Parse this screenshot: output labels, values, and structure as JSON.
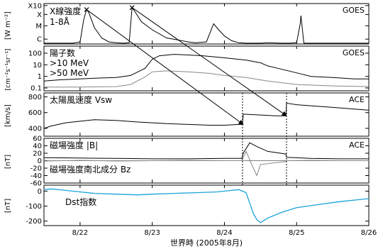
{
  "chart_data": {
    "type": "line",
    "x_axis": {
      "label": "世界時 (2005年8月)",
      "ticks": [
        "8/22",
        "8/23",
        "8/24",
        "8/25",
        "8/26"
      ],
      "range_days": [
        21.5,
        26.0
      ]
    },
    "panels": [
      {
        "id": "xray",
        "title": "X線強度",
        "subtitle": "1-8Å",
        "source": "GOES",
        "ylabel": "[W m⁻²]",
        "yscale": "class",
        "yticks": [
          "X10",
          "X",
          "M",
          "C"
        ],
        "series": [
          {
            "color": "#000000",
            "x": [
              21.5,
              21.9,
              22.0,
              22.05,
              22.09,
              22.12,
              22.2,
              22.3,
              22.4,
              22.5,
              22.6,
              22.68,
              22.72,
              22.76,
              22.85,
              23.0,
              23.2,
              23.35,
              23.5,
              23.6,
              23.75,
              23.85,
              23.92,
              24.0,
              24.1,
              24.2,
              24.3,
              24.5,
              24.6,
              24.8,
              24.9,
              25.0,
              25.05,
              25.06,
              25.1,
              25.5,
              26.0
            ],
            "y": [
              0.02,
              0.02,
              0.05,
              0.6,
              0.85,
              0.78,
              0.4,
              0.15,
              0.05,
              0.03,
              0.02,
              0.03,
              0.9,
              0.8,
              0.55,
              0.35,
              0.15,
              0.1,
              0.05,
              0.03,
              0.05,
              0.5,
              0.35,
              0.2,
              0.08,
              0.03,
              0.02,
              0.02,
              0.03,
              0.02,
              0.02,
              0.03,
              0.5,
              0.7,
              0.02,
              0.02,
              0.02
            ]
          }
        ]
      },
      {
        "id": "proton",
        "title": "陽子数",
        "source": "GOES",
        "ylabel": "[cm⁻²s⁻¹sr⁻¹]",
        "yscale": "log",
        "ylim": [
          0.1,
          100
        ],
        "yticks": [
          0.1,
          1,
          10,
          100
        ],
        "series": [
          {
            "name": ">10 MeV",
            "color": "#000000",
            "x": [
              21.5,
              21.7,
              22.0,
              22.2,
              22.5,
              22.7,
              22.9,
              23.0,
              23.1,
              23.3,
              23.5,
              23.7,
              24.0,
              24.3,
              24.5,
              24.6,
              24.8,
              25.0,
              25.2,
              25.5,
              25.8,
              26.0
            ],
            "y": [
              0.4,
              0.5,
              0.6,
              0.7,
              0.8,
              1.2,
              5,
              30,
              60,
              80,
              70,
              60,
              40,
              25,
              15,
              8,
              4,
              2,
              1,
              0.8,
              0.6,
              0.6
            ]
          },
          {
            "name": ">50 MeV",
            "color": "#888888",
            "x": [
              21.5,
              22.0,
              22.5,
              22.7,
              22.9,
              23.0,
              23.2,
              23.5,
              23.8,
              24.0,
              24.3,
              24.6,
              25.0,
              25.5,
              26.0
            ],
            "y": [
              0.12,
              0.12,
              0.13,
              0.2,
              0.9,
              2.5,
              3,
              2.5,
              1.8,
              1.2,
              0.8,
              0.4,
              0.2,
              0.15,
              0.13
            ]
          }
        ]
      },
      {
        "id": "sw",
        "title": "太陽風速度 Vsw",
        "source": "ACE",
        "ylabel": "[km/s]",
        "yscale": "linear",
        "ylim": [
          300,
          850
        ],
        "yticks": [
          400,
          600,
          800
        ],
        "series": [
          {
            "color": "#000000",
            "x": [
              21.5,
              21.6,
              21.8,
              22.0,
              22.2,
              22.5,
              22.8,
              23.0,
              23.2,
              23.5,
              23.8,
              24.0,
              24.2,
              24.25,
              24.26,
              24.5,
              24.7,
              24.85,
              24.86,
              25.0,
              25.3,
              25.6,
              26.0
            ],
            "y": [
              400,
              430,
              470,
              490,
              510,
              500,
              480,
              470,
              460,
              450,
              440,
              440,
              450,
              450,
              580,
              570,
              560,
              560,
              720,
              700,
              680,
              660,
              630
            ]
          }
        ]
      },
      {
        "id": "mag",
        "title": "磁場強度 |B|",
        "source": "ACE",
        "ylabel": "[nT]",
        "yscale": "linear",
        "ylim": [
          -60,
          60
        ],
        "yticks": [
          60,
          40,
          20,
          0,
          -20,
          -40,
          -60
        ],
        "series": [
          {
            "name": "磁場強度 |B|",
            "color": "#000000",
            "x": [
              21.5,
              22.0,
              22.5,
              23.0,
              23.5,
              24.0,
              24.24,
              24.26,
              24.35,
              24.45,
              24.6,
              24.85,
              24.86,
              25.2,
              25.6,
              26.0
            ],
            "y": [
              8,
              7,
              6,
              5,
              5,
              6,
              6,
              20,
              48,
              38,
              25,
              18,
              9,
              6,
              5,
              5
            ]
          },
          {
            "name": "磁場強度南北成分 Bz",
            "color": "#888888",
            "x": [
              21.5,
              22.0,
              22.5,
              23.0,
              23.5,
              24.0,
              24.24,
              24.3,
              24.4,
              24.45,
              24.5,
              24.6,
              24.85,
              24.86,
              25.2,
              25.6,
              26.0
            ],
            "y": [
              -1,
              1,
              -1,
              0,
              1,
              0,
              0,
              25,
              -20,
              -40,
              -10,
              -8,
              -2,
              0,
              1,
              0,
              0
            ]
          }
        ]
      },
      {
        "id": "dst",
        "title": "Dst指数",
        "ylabel": "[nT]",
        "yscale": "linear",
        "ylim": [
          -230,
          40
        ],
        "yticks": [
          0,
          -100,
          -200
        ],
        "series": [
          {
            "name": "Dst指数",
            "color": "#1aa3d9",
            "x": [
              21.5,
              21.6,
              21.8,
              22.0,
              22.2,
              22.5,
              22.8,
              23.0,
              23.3,
              23.6,
              23.9,
              24.0,
              24.2,
              24.3,
              24.35,
              24.4,
              24.45,
              24.5,
              24.6,
              24.8,
              25.0,
              25.3,
              25.6,
              26.0
            ],
            "y": [
              10,
              15,
              5,
              -5,
              -15,
              -20,
              -25,
              -20,
              -15,
              -10,
              -5,
              0,
              10,
              -10,
              -80,
              -150,
              -190,
              -210,
              -180,
              -140,
              -110,
              -90,
              -70,
              -50
            ]
          }
        ]
      }
    ],
    "annotations": {
      "event_lines_days": [
        24.25,
        24.86
      ],
      "arrows": [
        {
          "from_panel": "xray",
          "from": [
            22.09,
            0.85
          ],
          "to_panel": "sw",
          "to": [
            24.26,
            450
          ]
        },
        {
          "from_panel": "xray",
          "from": [
            22.72,
            0.9
          ],
          "to_panel": "sw",
          "to": [
            24.86,
            560
          ]
        }
      ]
    }
  }
}
